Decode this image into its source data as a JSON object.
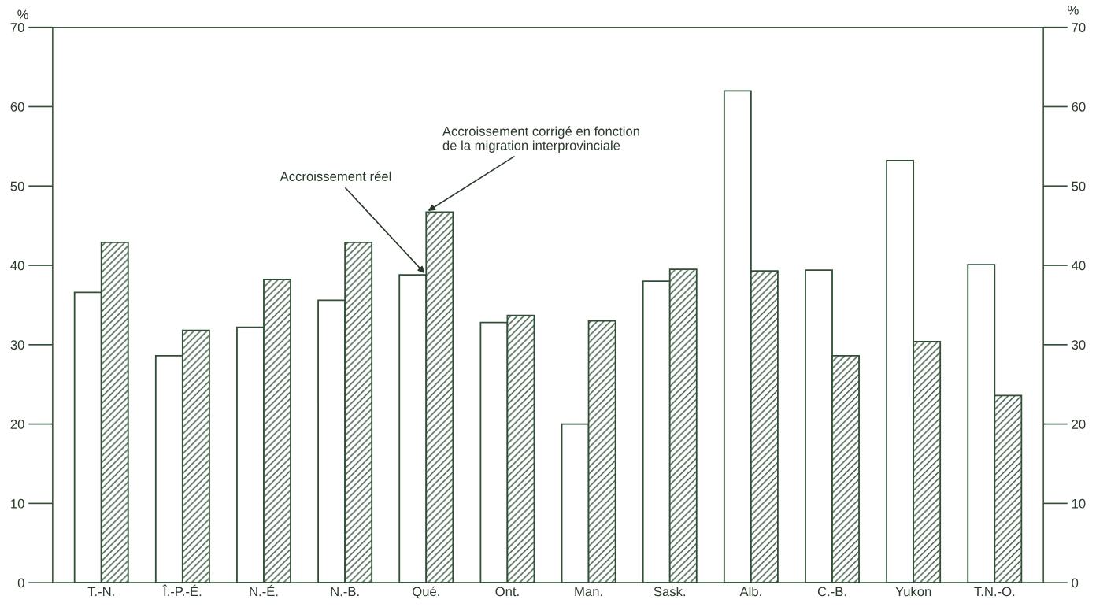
{
  "chart_data": {
    "type": "bar",
    "categories": [
      "T.-N.",
      "Î.-P.-É.",
      "N.-É.",
      "N.-B.",
      "Qué.",
      "Ont.",
      "Man.",
      "Sask.",
      "Alb.",
      "C.-B.",
      "Yukon",
      "T.N.-O."
    ],
    "series": [
      {
        "color": "#ffffff",
        "values": [
          36.6,
          28.6,
          32.2,
          35.6,
          38.8,
          32.8,
          20.0,
          38.0,
          62.0,
          39.4,
          53.2,
          40.1
        ]
      },
      {
        "color": "#2f4f36",
        "values": [
          42.9,
          31.8,
          38.2,
          42.9,
          46.7,
          33.7,
          33.0,
          39.5,
          39.3,
          28.6,
          30.4,
          23.6
        ]
      }
    ],
    "ylabel": "%",
    "y2label": "%",
    "ylim": [
      0,
      70
    ],
    "yticks": [
      0,
      10,
      20,
      30,
      40,
      50,
      60,
      70
    ],
    "y2lim": [
      0,
      70
    ],
    "y2ticks": [
      0,
      10,
      20,
      30,
      40,
      50,
      60,
      70
    ],
    "annotations": [
      {
        "text": "Accroissement réel",
        "x": "Qué.",
        "y": 38.8
      },
      {
        "text": "Accroissement corrigé en fonction\nde la migration interprovinciale",
        "x": "Qué.",
        "y": 46.7
      }
    ],
    "grid": false,
    "legend": false
  }
}
